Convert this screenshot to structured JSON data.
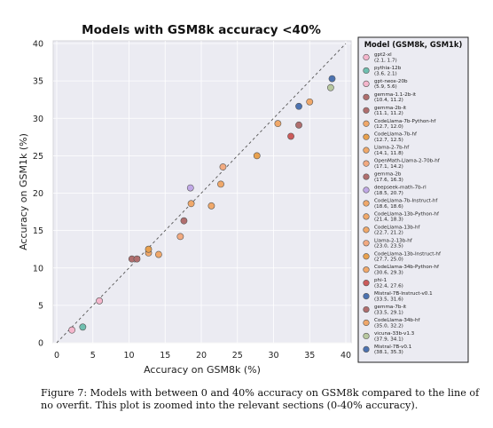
{
  "chart_data": {
    "type": "scatter",
    "title": "Models with GSM8k accuracy <40%",
    "xlabel": "Accuracy on GSM8k (%)",
    "ylabel": "Accuracy on GSM1k (%)",
    "xlim": [
      0,
      40
    ],
    "ylim": [
      0,
      40
    ],
    "xticks": [
      0,
      5,
      10,
      15,
      20,
      25,
      30,
      35,
      40
    ],
    "yticks": [
      0,
      5,
      10,
      15,
      20,
      25,
      30,
      35,
      40
    ],
    "grid": true,
    "reference_line": "y = x (dashed)",
    "legend_title": "Model (GSM8k, GSM1k)",
    "legend_position": "right",
    "background_color": "#ebebf2",
    "series": [
      {
        "name": "gpt2-xl",
        "label": "(2.1, 1.7)",
        "x": 2.1,
        "y": 1.7,
        "color": "#f4b6cc"
      },
      {
        "name": "pythia-12b",
        "label": "(3.6, 2.1)",
        "x": 3.6,
        "y": 2.1,
        "color": "#6fbfb0"
      },
      {
        "name": "gpt-neox-20b",
        "label": "(5.9, 5.6)",
        "x": 5.9,
        "y": 5.6,
        "color": "#f4b6cc"
      },
      {
        "name": "gemma-1.1-2b-it",
        "label": "(10.4, 11.2)",
        "x": 10.4,
        "y": 11.2,
        "color": "#b06e6e"
      },
      {
        "name": "gemma-2b-it",
        "label": "(11.1, 11.2)",
        "x": 11.1,
        "y": 11.2,
        "color": "#b06e6e"
      },
      {
        "name": "CodeLlama-7b-Python-hf",
        "label": "(12.7, 12.0)",
        "x": 12.7,
        "y": 12.0,
        "color": "#f0a86a"
      },
      {
        "name": "CodeLlama-7b-hf",
        "label": "(12.7, 12.5)",
        "x": 12.7,
        "y": 12.5,
        "color": "#e8a04e"
      },
      {
        "name": "Llama-2-7b-hf",
        "label": "(14.1, 11.8)",
        "x": 14.1,
        "y": 11.8,
        "color": "#f0a86a"
      },
      {
        "name": "OpenMath-Llama-2-70b-hf",
        "label": "(17.1, 14.2)",
        "x": 17.1,
        "y": 14.2,
        "color": "#f2aa80"
      },
      {
        "name": "gemma-2b",
        "label": "(17.6, 16.3)",
        "x": 17.6,
        "y": 16.3,
        "color": "#b06e6e"
      },
      {
        "name": "deepseek-math-7b-rl",
        "label": "(18.5, 20.7)",
        "x": 18.5,
        "y": 20.7,
        "color": "#c0a8e6"
      },
      {
        "name": "CodeLlama-7b-Instruct-hf",
        "label": "(18.6, 18.6)",
        "x": 18.6,
        "y": 18.6,
        "color": "#f0a86a"
      },
      {
        "name": "CodeLlama-13b-Python-hf",
        "label": "(21.4, 18.3)",
        "x": 21.4,
        "y": 18.3,
        "color": "#f0a86a"
      },
      {
        "name": "CodeLlama-13b-hf",
        "label": "(22.7, 21.2)",
        "x": 22.7,
        "y": 21.2,
        "color": "#f0a86a"
      },
      {
        "name": "Llama-2-13b-hf",
        "label": "(23.0, 23.5)",
        "x": 23.0,
        "y": 23.5,
        "color": "#f2aa80"
      },
      {
        "name": "CodeLlama-13b-Instruct-hf",
        "label": "(27.7, 25.0)",
        "x": 27.7,
        "y": 25.0,
        "color": "#e8a04e"
      },
      {
        "name": "CodeLlama-34b-Python-hf",
        "label": "(30.6, 29.3)",
        "x": 30.6,
        "y": 29.3,
        "color": "#f0a86a"
      },
      {
        "name": "phi-1",
        "label": "(32.4, 27.6)",
        "x": 32.4,
        "y": 27.6,
        "color": "#cc5b5b"
      },
      {
        "name": "Mistral-7B-Instruct-v0.1",
        "label": "(33.5, 31.6)",
        "x": 33.5,
        "y": 31.6,
        "color": "#4c72b0"
      },
      {
        "name": "gemma-7b-it",
        "label": "(33.5, 29.1)",
        "x": 33.5,
        "y": 29.1,
        "color": "#b06e6e"
      },
      {
        "name": "CodeLlama-34b-hf",
        "label": "(35.0, 32.2)",
        "x": 35.0,
        "y": 32.2,
        "color": "#f0a86a"
      },
      {
        "name": "vicuna-33b-v1.3",
        "label": "(37.9, 34.1)",
        "x": 37.9,
        "y": 34.1,
        "color": "#b8c8a0"
      },
      {
        "name": "Mistral-7B-v0.1",
        "label": "(38.1, 35.3)",
        "x": 38.1,
        "y": 35.3,
        "color": "#4c72b0"
      }
    ]
  },
  "caption": "Figure 7: Models with between 0 and 40% accuracy on GSM8k compared to the line of no overfit. This plot is zoomed into the relevant sections (0-40% accuracy)."
}
